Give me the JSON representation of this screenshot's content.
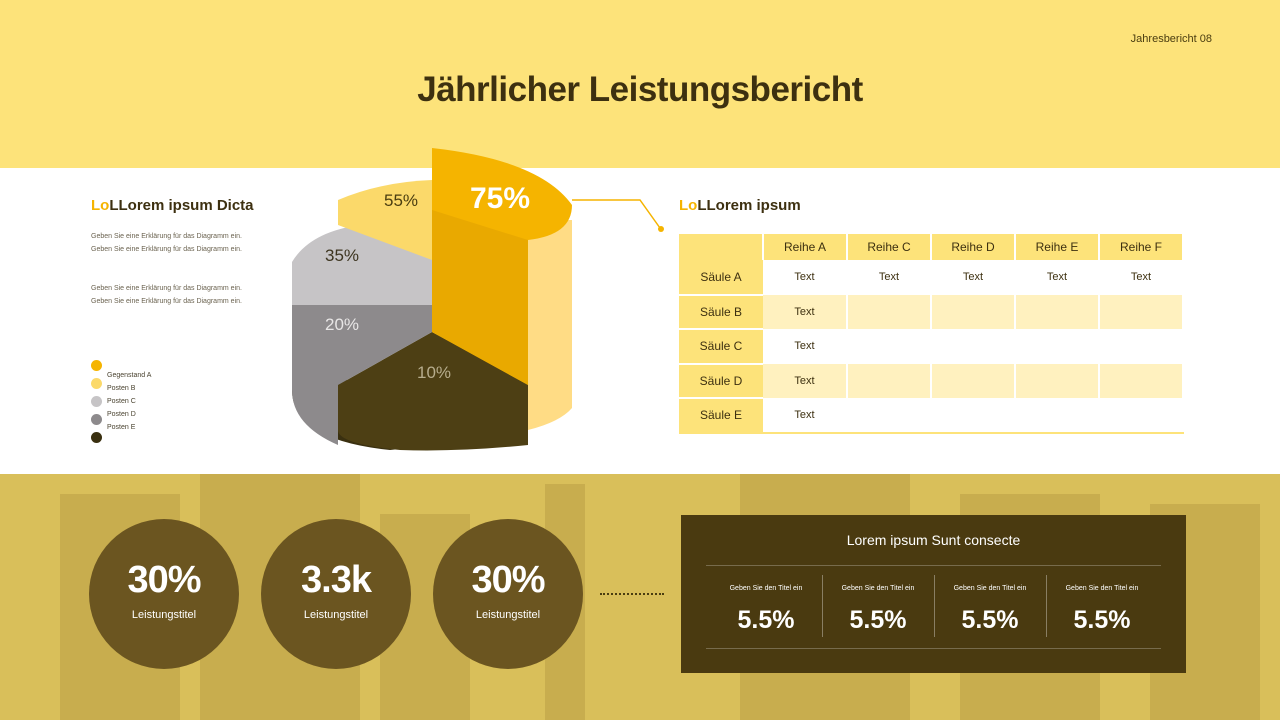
{
  "header": {
    "page_tag": "Jahresbericht 08",
    "title": "Jährlicher Leistungsbericht"
  },
  "left_panel": {
    "title_accent": "Lo",
    "title_rest": "LLorem ipsum Dicta",
    "desc1": [
      "Geben Sie eine Erklärung für das Diagramm ein.",
      "Geben Sie eine Erklärung für das Diagramm ein."
    ],
    "desc2": [
      "Geben Sie eine Erklärung für das Diagramm ein.",
      "Geben Sie eine Erklärung für das Diagramm ein."
    ],
    "legend": [
      {
        "label": "Gegenstand A",
        "color": "#f5b400"
      },
      {
        "label": "Posten B",
        "color": "#fbd96a"
      },
      {
        "label": "Posten C",
        "color": "#c6c4c6"
      },
      {
        "label": "Posten D",
        "color": "#8d8a8c"
      },
      {
        "label": "Posten E",
        "color": "#3a3010"
      }
    ]
  },
  "chart_data": {
    "type": "pie",
    "slices": [
      {
        "label": "75%",
        "value": 75,
        "color": "#f5b400"
      },
      {
        "label": "55%",
        "value": 55,
        "color": "#fbd96a"
      },
      {
        "label": "35%",
        "value": 35,
        "color": "#c6c4c6"
      },
      {
        "label": "20%",
        "value": 20,
        "color": "#8d8a8c"
      },
      {
        "label": "10%",
        "value": 10,
        "color": "#3a3010"
      }
    ]
  },
  "table_panel": {
    "title_accent": "Lo",
    "title_rest": "LLorem ipsum",
    "columns": [
      "Reihe A",
      "Reihe C",
      "Reihe D",
      "Reihe E",
      "Reihe F"
    ],
    "rows": [
      {
        "label": "Säule A",
        "cells": [
          "Text",
          "Text",
          "Text",
          "Text",
          "Text"
        ]
      },
      {
        "label": "Säule B",
        "cells": [
          "Text",
          "",
          "",
          "",
          ""
        ]
      },
      {
        "label": "Säule C",
        "cells": [
          "Text",
          "",
          "",
          "",
          ""
        ]
      },
      {
        "label": "Säule D",
        "cells": [
          "Text",
          "",
          "",
          "",
          ""
        ]
      },
      {
        "label": "Säule E",
        "cells": [
          "Text",
          "",
          "",
          "",
          ""
        ]
      }
    ]
  },
  "kpis": [
    {
      "value": "30%",
      "label": "Leistungstitel"
    },
    {
      "value": "3.3k",
      "label": "Leistungstitel"
    },
    {
      "value": "30%",
      "label": "Leistungstitel"
    }
  ],
  "summary_box": {
    "title": "Lorem ipsum Sunt consecte",
    "stats": [
      {
        "label": "Geben Sie den Titel ein",
        "value": "5.5%"
      },
      {
        "label": "Geben Sie den Titel ein",
        "value": "5.5%"
      },
      {
        "label": "Geben Sie den Titel ein",
        "value": "5.5%"
      },
      {
        "label": "Geben Sie den Titel ein",
        "value": "5.5%"
      }
    ]
  }
}
